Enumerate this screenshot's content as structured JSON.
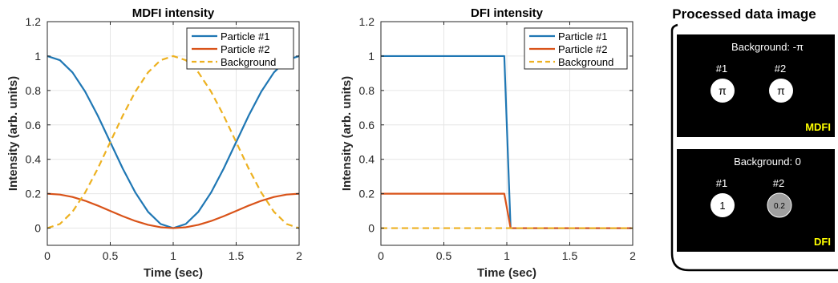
{
  "chart_data": [
    {
      "type": "line",
      "title": "MDFI intensity",
      "xlabel": "Time (sec)",
      "ylabel": "Intensity (arb. units)",
      "xlim": [
        0,
        2
      ],
      "ylim": [
        -0.1,
        1.2
      ],
      "xticks": [
        0,
        0.5,
        1,
        1.5,
        2
      ],
      "xtick_labels": [
        "0",
        "0.5",
        "1",
        "1.5",
        "2"
      ],
      "yticks": [
        0,
        0.2,
        0.4,
        0.6,
        0.8,
        1,
        1.2
      ],
      "ytick_labels": [
        "0",
        "0.2",
        "0.4",
        "0.6",
        "0.8",
        "1",
        "1.2"
      ],
      "grid": true,
      "legend_position": "top-right",
      "series": [
        {
          "name": "Particle #1",
          "color": "#1f77b4",
          "style": "solid",
          "x": [
            0,
            0.1,
            0.2,
            0.3,
            0.4,
            0.5,
            0.6,
            0.7,
            0.8,
            0.9,
            1.0,
            1.1,
            1.2,
            1.3,
            1.4,
            1.5,
            1.6,
            1.7,
            1.8,
            1.9,
            2.0
          ],
          "y": [
            1.0,
            0.976,
            0.905,
            0.794,
            0.655,
            0.5,
            0.345,
            0.206,
            0.095,
            0.024,
            0.0,
            0.024,
            0.095,
            0.206,
            0.345,
            0.5,
            0.655,
            0.794,
            0.905,
            0.976,
            1.0
          ]
        },
        {
          "name": "Particle #2",
          "color": "#d95319",
          "style": "solid",
          "x": [
            0,
            0.1,
            0.2,
            0.3,
            0.4,
            0.5,
            0.6,
            0.7,
            0.8,
            0.9,
            1.0,
            1.1,
            1.2,
            1.3,
            1.4,
            1.5,
            1.6,
            1.7,
            1.8,
            1.9,
            2.0
          ],
          "y": [
            0.2,
            0.195,
            0.181,
            0.159,
            0.131,
            0.1,
            0.069,
            0.041,
            0.019,
            0.005,
            0.0,
            0.005,
            0.019,
            0.041,
            0.069,
            0.1,
            0.131,
            0.159,
            0.181,
            0.195,
            0.2
          ]
        },
        {
          "name": "Background",
          "color": "#edb120",
          "style": "dashed",
          "x": [
            0,
            0.1,
            0.2,
            0.3,
            0.4,
            0.5,
            0.6,
            0.7,
            0.8,
            0.9,
            1.0,
            1.1,
            1.2,
            1.3,
            1.4,
            1.5,
            1.6,
            1.7,
            1.8,
            1.9,
            2.0
          ],
          "y": [
            0.0,
            0.024,
            0.095,
            0.206,
            0.345,
            0.5,
            0.655,
            0.794,
            0.905,
            0.976,
            1.0,
            0.976,
            0.905,
            0.794,
            0.655,
            0.5,
            0.345,
            0.206,
            0.095,
            0.024,
            0.0
          ]
        }
      ]
    },
    {
      "type": "line",
      "title": "DFI intensity",
      "xlabel": "Time (sec)",
      "ylabel": "Intensity (arb. units)",
      "xlim": [
        0,
        2
      ],
      "ylim": [
        -0.1,
        1.2
      ],
      "xticks": [
        0,
        0.5,
        1,
        1.5,
        2
      ],
      "xtick_labels": [
        "0",
        "0.5",
        "1",
        "1.5",
        "2"
      ],
      "yticks": [
        0,
        0.2,
        0.4,
        0.6,
        0.8,
        1,
        1.2
      ],
      "ytick_labels": [
        "0",
        "0.2",
        "0.4",
        "0.6",
        "0.8",
        "1",
        "1.2"
      ],
      "grid": true,
      "legend_position": "top-right",
      "series": [
        {
          "name": "Particle #1",
          "color": "#1f77b4",
          "style": "solid",
          "x": [
            0,
            0.98,
            1.03,
            2.0
          ],
          "y": [
            1.0,
            1.0,
            0.0,
            0.0
          ]
        },
        {
          "name": "Particle #2",
          "color": "#d95319",
          "style": "solid",
          "x": [
            0,
            0.98,
            1.03,
            2.0
          ],
          "y": [
            0.2,
            0.2,
            0.0,
            0.0
          ]
        },
        {
          "name": "Background",
          "color": "#edb120",
          "style": "dashed",
          "x": [
            0,
            2.0
          ],
          "y": [
            0.0,
            0.0
          ]
        }
      ]
    }
  ],
  "processed": {
    "title": "Processed data image",
    "panels": [
      {
        "background_label": "Background: -π",
        "mode_label": "MDFI",
        "particles": [
          {
            "label": "#1",
            "value": "π",
            "fill": "#ffffff"
          },
          {
            "label": "#2",
            "value": "π",
            "fill": "#ffffff"
          }
        ]
      },
      {
        "background_label": "Background: 0",
        "mode_label": "DFI",
        "particles": [
          {
            "label": "#1",
            "value": "1",
            "fill": "#ffffff"
          },
          {
            "label": "#2",
            "value": "0.2",
            "fill": "#a0a0a0"
          }
        ]
      }
    ],
    "mode_label_color": "#ffff00"
  }
}
